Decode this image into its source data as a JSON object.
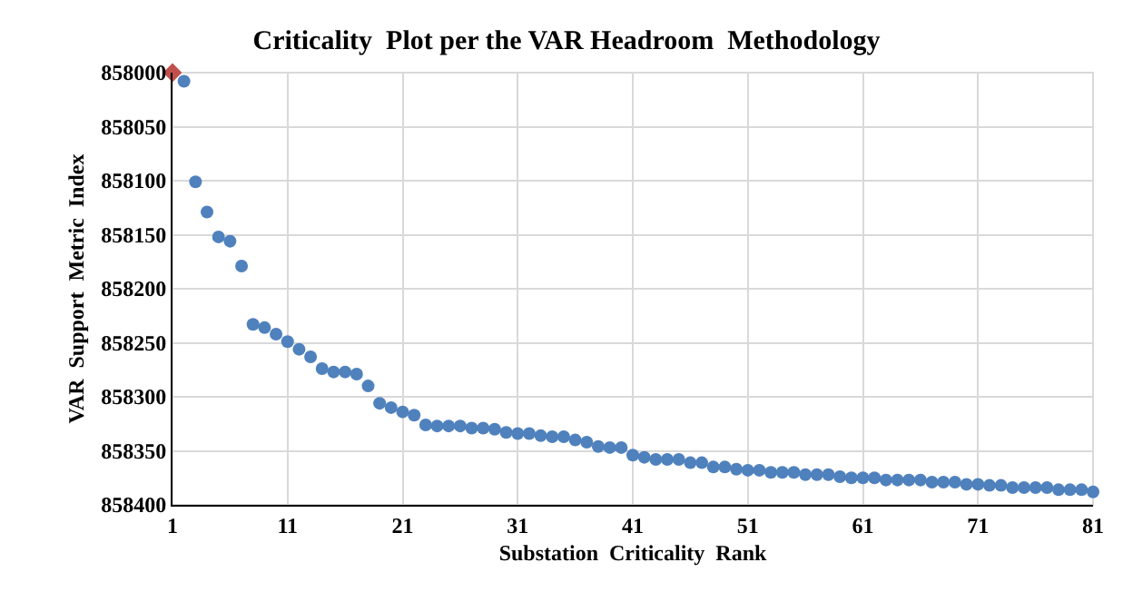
{
  "chart_data": {
    "type": "scatter",
    "title": "Criticality  Plot per the VAR Headroom  Methodology",
    "xlabel": "Substation  Criticality  Rank",
    "ylabel": "VAR  Support  Metric  Index",
    "xlim": [
      1,
      81
    ],
    "xticks": [
      1,
      11,
      21,
      31,
      41,
      51,
      61,
      71,
      81
    ],
    "ylim": [
      858400,
      858000
    ],
    "yticks": [
      858000,
      858050,
      858100,
      858150,
      858200,
      858250,
      858300,
      858350,
      858400
    ],
    "grid": true,
    "series": [
      {
        "color": "#c0504d",
        "marker": "diamond",
        "x": [
          1
        ],
        "values": [
          858000
        ]
      },
      {
        "color": "#4f81bd",
        "marker": "circle",
        "x": [
          2,
          3,
          4,
          5,
          6,
          7,
          8,
          9,
          10,
          11,
          12,
          13,
          14,
          15,
          16,
          17,
          18,
          19,
          20,
          21,
          22,
          23,
          24,
          25,
          26,
          27,
          28,
          29,
          30,
          31,
          32,
          33,
          34,
          35,
          36,
          37,
          38,
          39,
          40,
          41,
          42,
          43,
          44,
          45,
          46,
          47,
          48,
          49,
          50,
          51,
          52,
          53,
          54,
          55,
          56,
          57,
          58,
          59,
          60,
          61,
          62,
          63,
          64,
          65,
          66,
          67,
          68,
          69,
          70,
          71,
          72,
          73,
          74,
          75,
          76,
          77,
          78,
          79,
          80,
          81
        ],
        "values": [
          858008,
          858101,
          858129,
          858152,
          858156,
          858179,
          858233,
          858236,
          858242,
          858249,
          858256,
          858263,
          858274,
          858277,
          858277,
          858279,
          858290,
          858306,
          858310,
          858314,
          858317,
          858326,
          858327,
          858327,
          858327,
          858329,
          858329,
          858330,
          858333,
          858334,
          858334,
          858336,
          858337,
          858337,
          858340,
          858342,
          858346,
          858347,
          858347,
          858354,
          858356,
          858358,
          858358,
          858358,
          858361,
          858361,
          858365,
          858365,
          858367,
          858368,
          858368,
          858370,
          858370,
          858370,
          858372,
          858372,
          858372,
          858374,
          858375,
          858375,
          858375,
          858377,
          858377,
          858377,
          858377,
          858379,
          858379,
          858379,
          858381,
          858381,
          858382,
          858382,
          858384,
          858384,
          858384,
          858384,
          858386,
          858386,
          858386,
          858388
        ]
      }
    ]
  }
}
